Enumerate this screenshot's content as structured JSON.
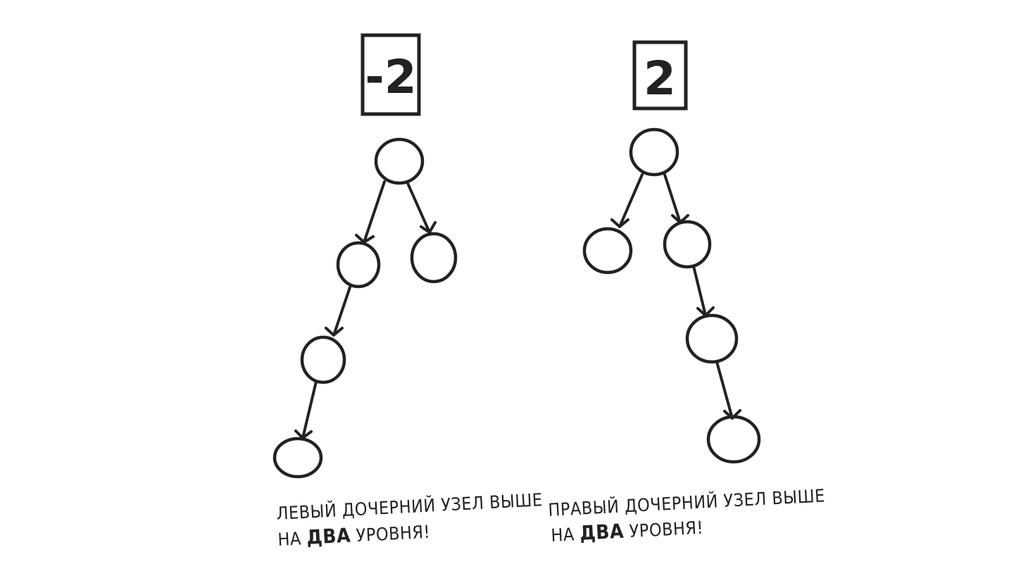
{
  "diagrams": [
    {
      "balance_label": "-2",
      "caption_line1": "ЛЕВЫЙ ДОЧЕРНИЙ УЗЕЛ ВЫШЕ",
      "caption_line2_prefix": "НА ",
      "caption_line2_emphasis": "ДВА",
      "caption_line2_suffix": " УРОВНЯ!"
    },
    {
      "balance_label": "2",
      "caption_line1": "ПРАВЫЙ ДОЧЕРНИЙ УЗЕЛ ВЫШЕ",
      "caption_line2_prefix": "НА ",
      "caption_line2_emphasis": "ДВА",
      "caption_line2_suffix": " УРОВНЯ!"
    }
  ]
}
